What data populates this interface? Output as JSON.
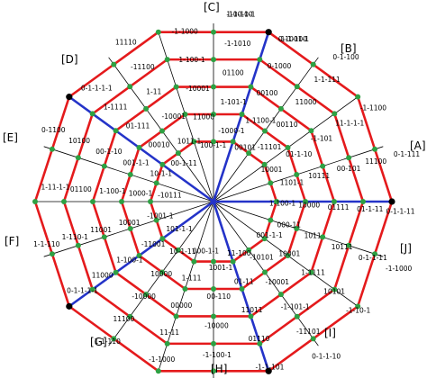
{
  "colors": {
    "ring": "#e41a1c",
    "axis": "#2433c8",
    "spoke": "#000000",
    "vertex": "#2ea043",
    "corner": "#000000"
  },
  "regions": [
    "[A]",
    "[B]",
    "[C]",
    "[D]",
    "[E]",
    "[F]",
    "[G]",
    "[H]",
    "[I]",
    "[J]"
  ],
  "vertex_labels": [
    "1-1-100",
    "-1-1-100",
    "0-1-100",
    "-1-1100",
    "0-1-111",
    "0-1-1-11",
    "-1-1000",
    "-1-10-1",
    "0-1-1-10",
    "-1-1-101",
    "01-1-10",
    "-1-1000",
    "1-1-110",
    "0-1-1-1-1",
    "1-1-110",
    "1-11-1-1",
    "0-1100",
    "0-1-1-1-1",
    "11110",
    "-1-1000",
    "-1-1010",
    "0-1000",
    "1-1-111",
    "11-1-1-1",
    "11100",
    "01-1-11",
    "0-1-1-11",
    "10101",
    "-11101",
    "01110",
    "-1-100-1",
    "11-11",
    "11100",
    "11000",
    "1-110-1",
    "01100",
    "10100",
    "1-1111",
    "-11100",
    "1-100-1",
    "01100",
    "00100",
    "11000",
    "-1-101",
    "00-101",
    "01111",
    "10111",
    "1-1111",
    "-1-101-1",
    "11011",
    "-10000",
    "00000",
    "-10000",
    "1-100-1",
    "11001",
    "1-100-1",
    "00-1-10",
    "01-111",
    "1-11",
    "-10001",
    "1-101-1",
    "1-1100-1",
    "00110",
    "01-1-10",
    "10111",
    "10000",
    "1011",
    "10001",
    "-10001",
    "01-11",
    "00-110",
    "1-111",
    "10000",
    "-11001",
    "10001",
    "1000-1",
    "001-1-1",
    "00010",
    "-10001",
    "11000",
    "-1000-1",
    "00101",
    "-11101",
    "10001",
    "1101-1",
    "1-100-1",
    "000-11",
    "001-1-1",
    "-10101",
    "11-100",
    "1001-1",
    "000-1-1",
    "10-1-11",
    "101-1-1",
    "-1001-1",
    "-10111",
    "10-1-1",
    "00-1-11",
    "1011-1",
    "100-1-1",
    "-100-1-1",
    "0-1001-1"
  ]
}
